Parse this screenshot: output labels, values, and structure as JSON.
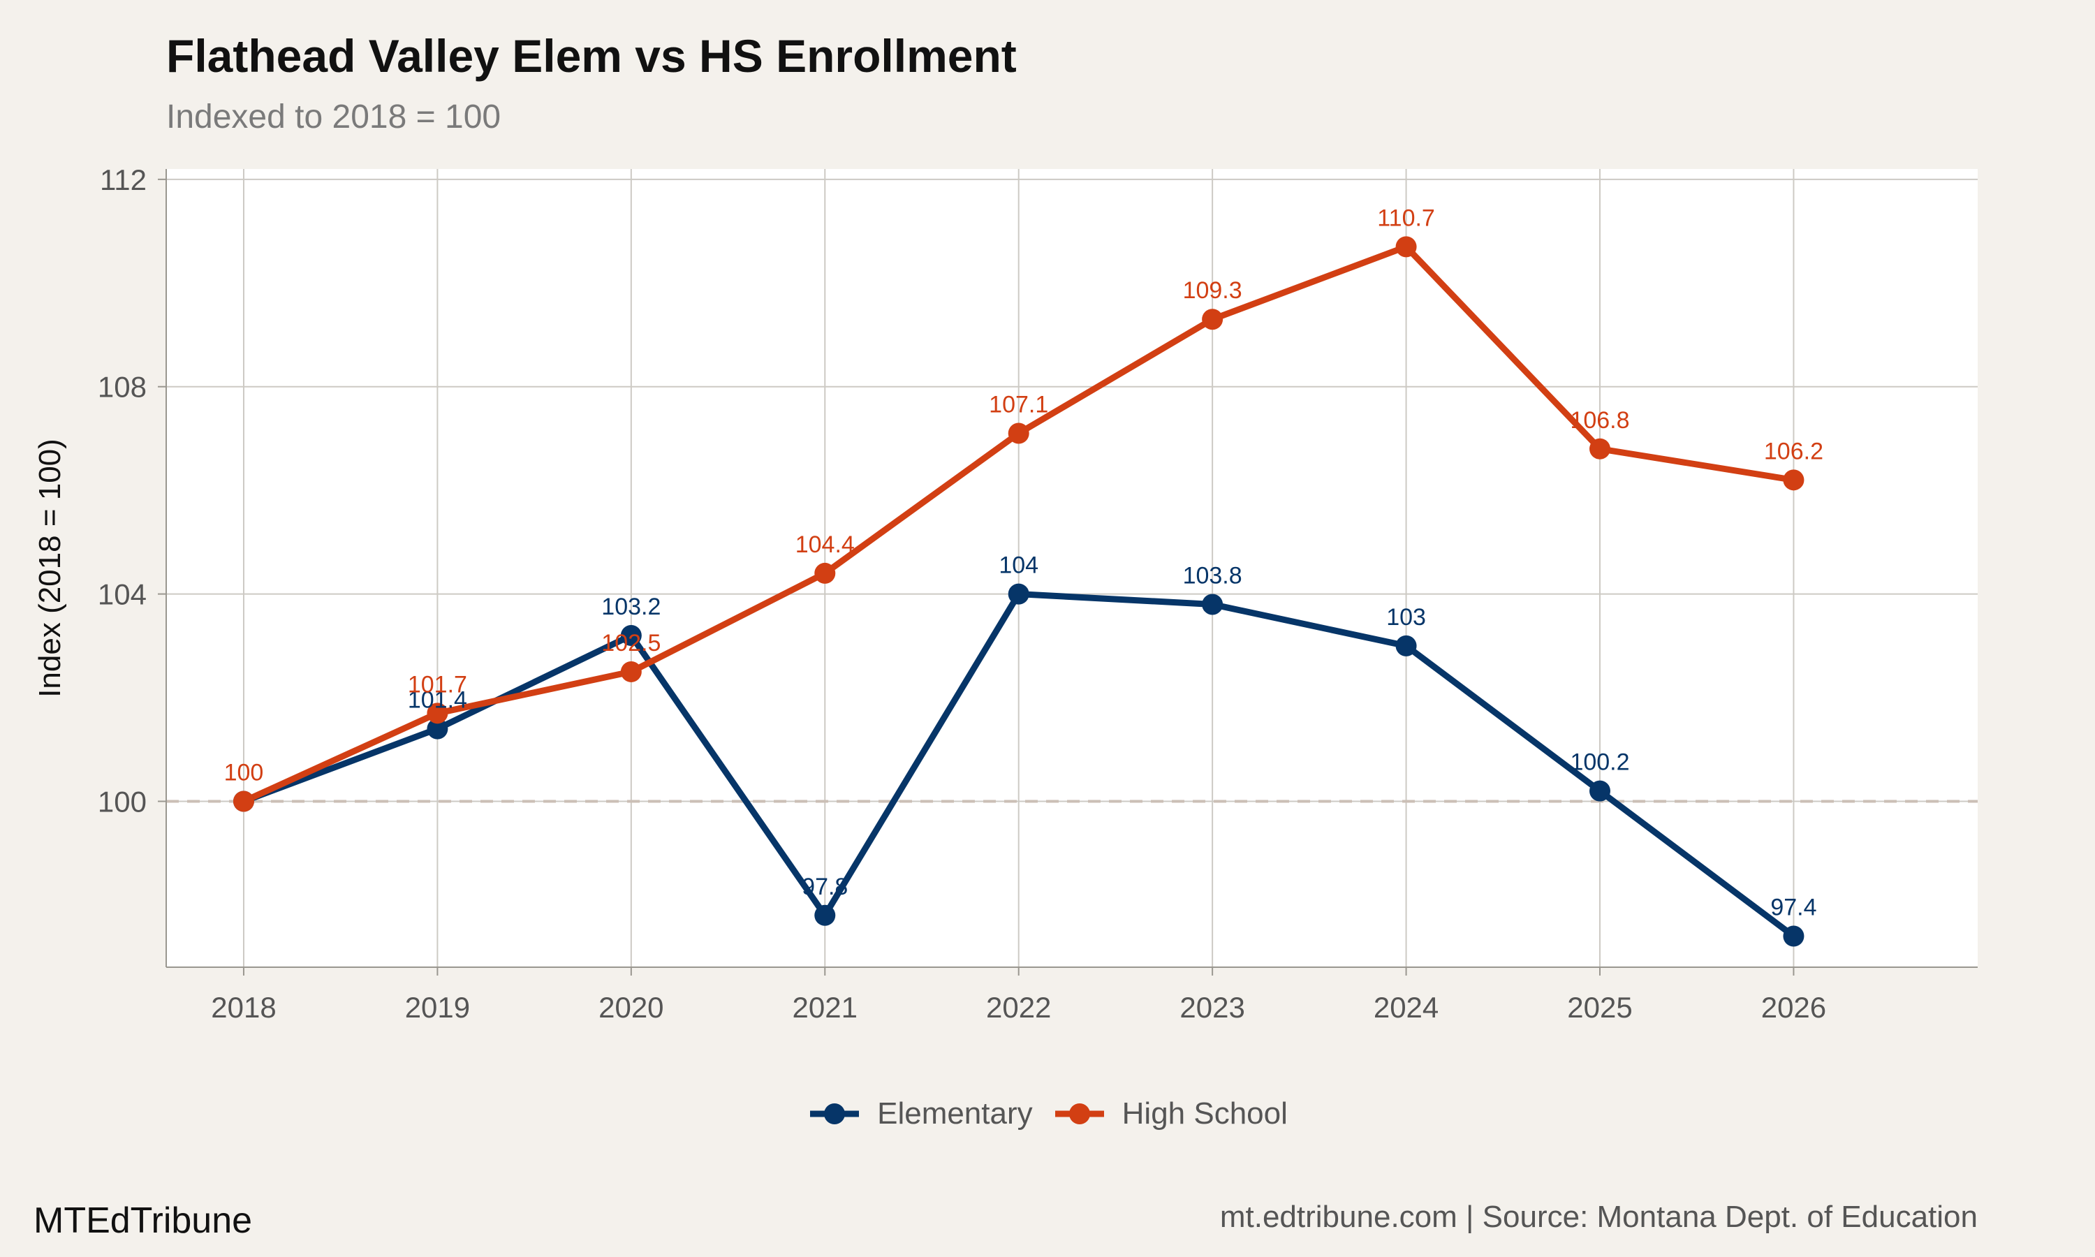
{
  "header": {
    "title": "Flathead Valley Elem vs HS Enrollment",
    "subtitle": "Indexed to 2018 = 100"
  },
  "footer": {
    "brand": "MTEdTribune",
    "caption": "mt.edtribune.com | Source: Montana Dept. of Education"
  },
  "chart_data": {
    "type": "line",
    "title": "Flathead Valley Elem vs HS Enrollment",
    "subtitle": "Indexed to 2018 = 100",
    "xlabel": "",
    "ylabel": "Index (2018 = 100)",
    "x": [
      2018,
      2019,
      2020,
      2021,
      2022,
      2023,
      2024,
      2025,
      2026
    ],
    "xlim": [
      2017.6,
      2026.95
    ],
    "ylim": [
      96.8,
      112.2
    ],
    "yticks": [
      100,
      104,
      108,
      112
    ],
    "reference_line": 100,
    "grid": true,
    "legend_position": "bottom",
    "series": [
      {
        "name": "Elementary",
        "color": "#063568",
        "values": [
          100,
          101.4,
          103.2,
          97.8,
          104,
          103.8,
          103,
          100.2,
          97.4
        ],
        "labels": [
          "",
          "101.4",
          "103.2",
          "97.8",
          "104",
          "103.8",
          "103",
          "100.2",
          "97.4"
        ]
      },
      {
        "name": "High School",
        "color": "#d23f13",
        "values": [
          100,
          101.7,
          102.5,
          104.4,
          107.1,
          109.3,
          110.7,
          106.8,
          106.2
        ],
        "labels": [
          "100",
          "101.7",
          "102.5",
          "104.4",
          "107.1",
          "109.3",
          "110.7",
          "106.8",
          "106.2"
        ]
      }
    ]
  }
}
